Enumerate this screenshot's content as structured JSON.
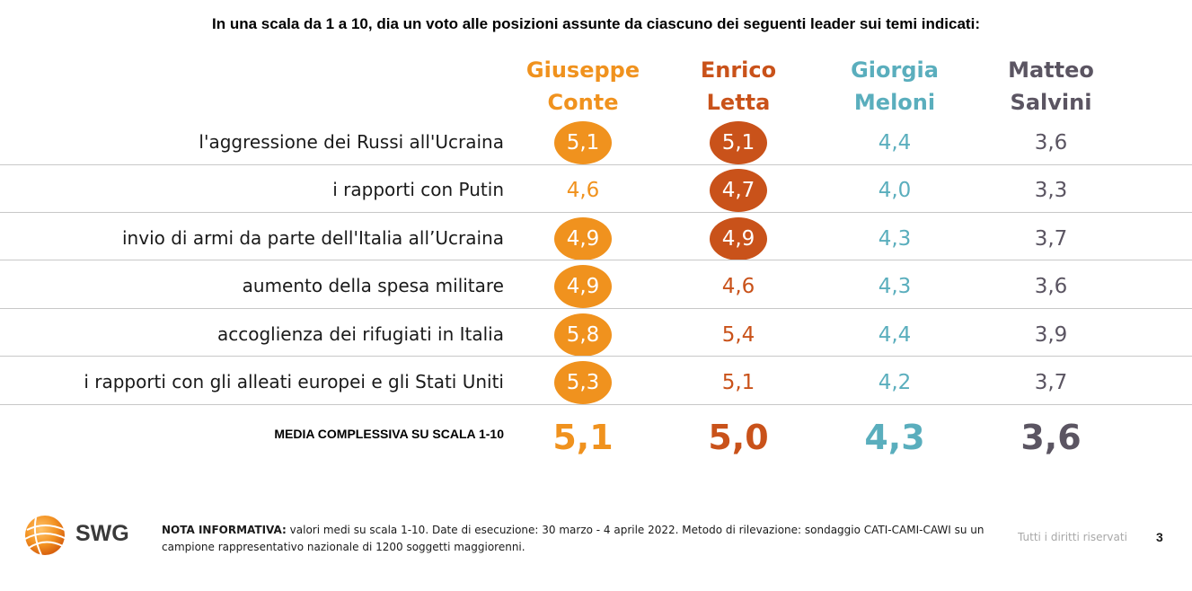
{
  "page_title": "In una scala da 1 a 10, dia un voto alle posizioni assunte da ciascuno dei seguenti leader sui temi indicati:",
  "colors": {
    "conte": "#f0921e",
    "letta": "#c9521a",
    "meloni": "#5aaebd",
    "salvini": "#5b5562"
  },
  "chart_data": {
    "type": "table",
    "title": "In una scala da 1 a 10, dia un voto alle posizioni assunte da ciascuno dei seguenti leader sui temi indicati:",
    "leaders": [
      {
        "first": "Giuseppe",
        "last": "Conte",
        "color_key": "conte"
      },
      {
        "first": "Enrico",
        "last": "Letta",
        "color_key": "letta"
      },
      {
        "first": "Giorgia",
        "last": "Meloni",
        "color_key": "meloni"
      },
      {
        "first": "Matteo",
        "last": "Salvini",
        "color_key": "salvini"
      }
    ],
    "rows": [
      {
        "topic": "l'aggressione dei Russi all'Ucraina",
        "values": [
          "5,1",
          "5,1",
          "4,4",
          "3,6"
        ],
        "highlight": [
          true,
          true,
          false,
          false
        ]
      },
      {
        "topic": "i rapporti con Putin",
        "values": [
          "4,6",
          "4,7",
          "4,0",
          "3,3"
        ],
        "highlight": [
          false,
          true,
          false,
          false
        ]
      },
      {
        "topic": "invio di armi da parte dell'Italia all’Ucraina",
        "values": [
          "4,9",
          "4,9",
          "4,3",
          "3,7"
        ],
        "highlight": [
          true,
          true,
          false,
          false
        ]
      },
      {
        "topic": "aumento della spesa militare",
        "values": [
          "4,9",
          "4,6",
          "4,3",
          "3,6"
        ],
        "highlight": [
          true,
          false,
          false,
          false
        ]
      },
      {
        "topic": "accoglienza dei rifugiati in Italia",
        "values": [
          "5,8",
          "5,4",
          "4,4",
          "3,9"
        ],
        "highlight": [
          true,
          false,
          false,
          false
        ]
      },
      {
        "topic": "i rapporti con gli alleati europei e gli Stati Uniti",
        "values": [
          "5,3",
          "5,1",
          "4,2",
          "3,7"
        ],
        "highlight": [
          true,
          false,
          false,
          false
        ]
      }
    ],
    "average": {
      "label": "MEDIA COMPLESSIVA SU SCALA 1-10",
      "values": [
        "5,1",
        "5,0",
        "4,3",
        "3,6"
      ]
    }
  },
  "footer": {
    "logo_text": "SWG",
    "note_label": "NOTA INFORMATIVA:",
    "note_text": " valori medi su scala 1-10. Date di esecuzione: 30 marzo - 4 aprile 2022. Metodo di rilevazione: sondaggio CATI-CAMI-CAWI su un campione rappresentativo nazionale di 1200 soggetti maggiorenni.",
    "rights": "Tutti i diritti riservati",
    "page_number": "3"
  }
}
